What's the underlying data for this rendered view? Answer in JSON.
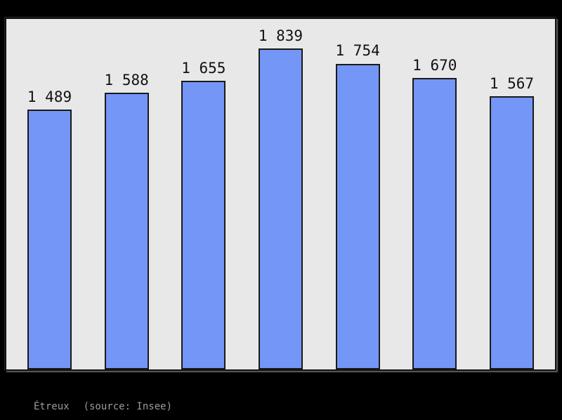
{
  "page": {
    "background_color": "#000000"
  },
  "chart_data": {
    "type": "bar",
    "title": "",
    "xlabel": "",
    "ylabel": "",
    "values": [
      1489,
      1588,
      1655,
      1839,
      1754,
      1670,
      1567
    ],
    "bar_labels": [
      "1 489",
      "1 588",
      "1 655",
      "1 839",
      "1 754",
      "1 670",
      "1 567"
    ],
    "x_tick_labels": [],
    "y_tick_labels": [],
    "ylim": [
      0,
      2010
    ],
    "grid": false,
    "legend": false,
    "bar_color": "#7496f7",
    "bar_border_color": "#1a1a1a",
    "panel_background": "#e8e8e8",
    "panel_border_color": "#111111",
    "label_color": "#111111"
  },
  "caption": {
    "name": "Étreux",
    "source": "(source: Insee)",
    "color": "#9c9c9c"
  }
}
